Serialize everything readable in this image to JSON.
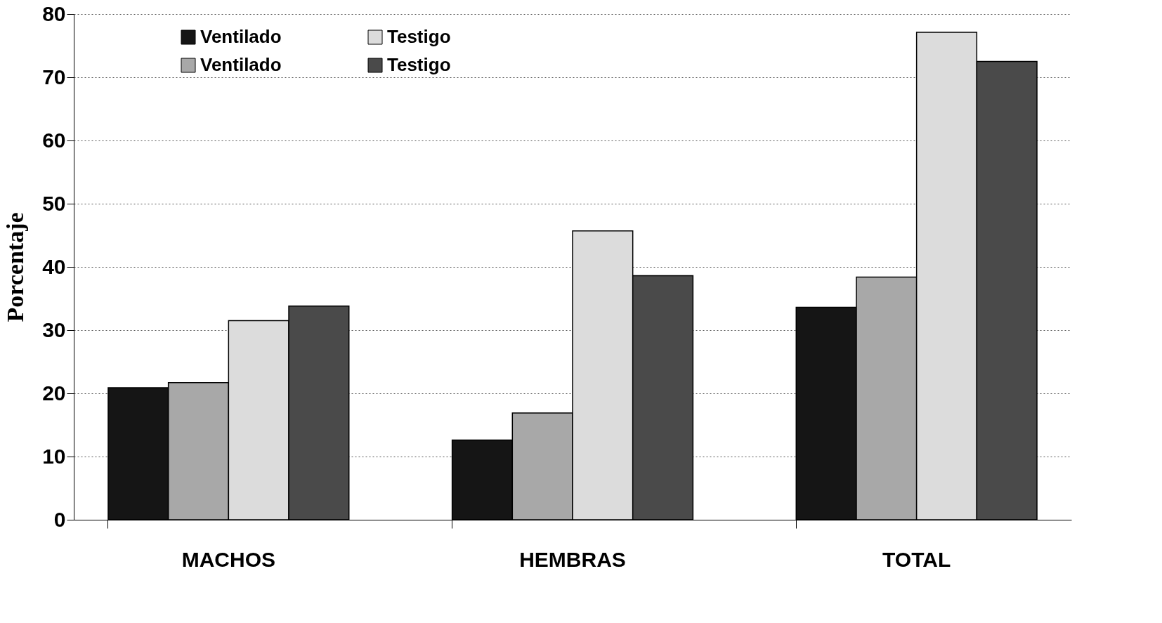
{
  "chart_data": {
    "type": "bar",
    "ylabel": "Porcentaje",
    "categories": [
      "MACHOS",
      "HEMBRAS",
      "TOTAL"
    ],
    "series": [
      {
        "name": "Ventilado",
        "color": "#151515",
        "values": [
          20.9,
          12.6,
          33.6
        ]
      },
      {
        "name": "Ventilado",
        "color": "#a8a8a8",
        "values": [
          21.7,
          16.9,
          38.4
        ]
      },
      {
        "name": "Testigo",
        "color": "#dcdcdc",
        "values": [
          31.5,
          45.7,
          77.1
        ]
      },
      {
        "name": "Testigo",
        "color": "#4a4a4a",
        "values": [
          33.8,
          38.6,
          72.5
        ]
      }
    ],
    "ylim": [
      0,
      80
    ],
    "yticks": [
      0,
      10,
      20,
      30,
      40,
      50,
      60,
      70,
      80
    ],
    "grid": "y",
    "legend": "top"
  }
}
